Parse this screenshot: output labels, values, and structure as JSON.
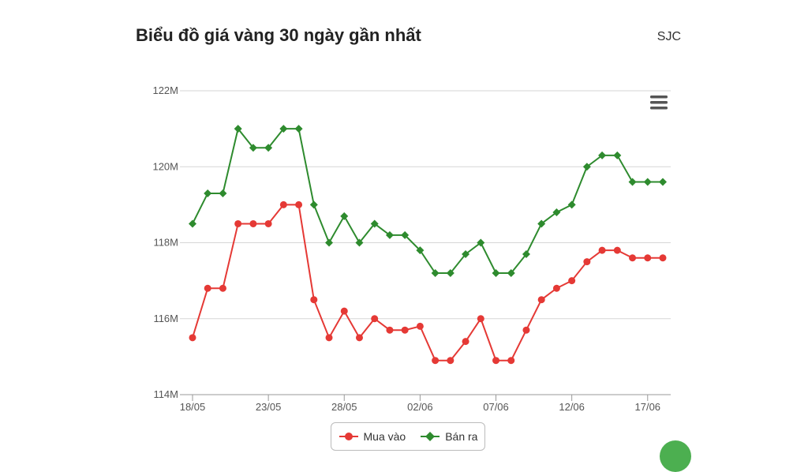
{
  "header": {
    "title": "Biểu đồ giá vàng 30 ngày gần nhất",
    "brand": "SJC"
  },
  "colors": {
    "buy": "#e53935",
    "sell": "#2e8b2e",
    "grid": "#d6d6d6",
    "axis": "#999999"
  },
  "icons": {
    "menu": "hamburger-icon"
  },
  "chart_data": {
    "type": "line",
    "title": "Biểu đồ giá vàng 30 ngày gần nhất",
    "x": [
      "18/05",
      "19/05",
      "20/05",
      "21/05",
      "22/05",
      "23/05",
      "24/05",
      "25/05",
      "26/05",
      "27/05",
      "28/05",
      "29/05",
      "30/05",
      "31/05",
      "01/06",
      "02/06",
      "03/06",
      "04/06",
      "05/06",
      "06/06",
      "07/06",
      "08/06",
      "09/06",
      "10/06",
      "11/06",
      "12/06",
      "13/06",
      "14/06",
      "15/06",
      "16/06",
      "17/06",
      "18/06"
    ],
    "x_tick_labels": [
      "18/05",
      "23/05",
      "28/05",
      "02/06",
      "07/06",
      "12/06",
      "17/06"
    ],
    "y_tick_labels": [
      "114M",
      "116M",
      "118M",
      "120M",
      "122M"
    ],
    "ylim": [
      114,
      122
    ],
    "y_unit": "M",
    "grid": true,
    "legend_position": "bottom-center",
    "series": [
      {
        "name": "Mua vào",
        "color": "#e53935",
        "marker": "circle",
        "values": [
          115.5,
          116.8,
          116.8,
          118.5,
          118.5,
          118.5,
          119.0,
          119.0,
          116.5,
          115.5,
          116.2,
          115.5,
          116.0,
          115.7,
          115.7,
          115.8,
          114.9,
          114.9,
          115.4,
          116.0,
          114.9,
          114.9,
          115.7,
          116.5,
          116.8,
          117.0,
          117.5,
          117.8,
          117.8,
          117.6,
          117.6,
          117.6
        ]
      },
      {
        "name": "Bán ra",
        "color": "#2e8b2e",
        "marker": "diamond",
        "values": [
          118.5,
          119.3,
          119.3,
          121.0,
          120.5,
          120.5,
          121.0,
          121.0,
          119.0,
          118.0,
          118.7,
          118.0,
          118.5,
          118.2,
          118.2,
          117.8,
          117.2,
          117.2,
          117.7,
          118.0,
          117.2,
          117.2,
          117.7,
          118.5,
          118.8,
          119.0,
          120.0,
          120.3,
          120.3,
          119.6,
          119.6,
          119.6
        ]
      }
    ]
  }
}
